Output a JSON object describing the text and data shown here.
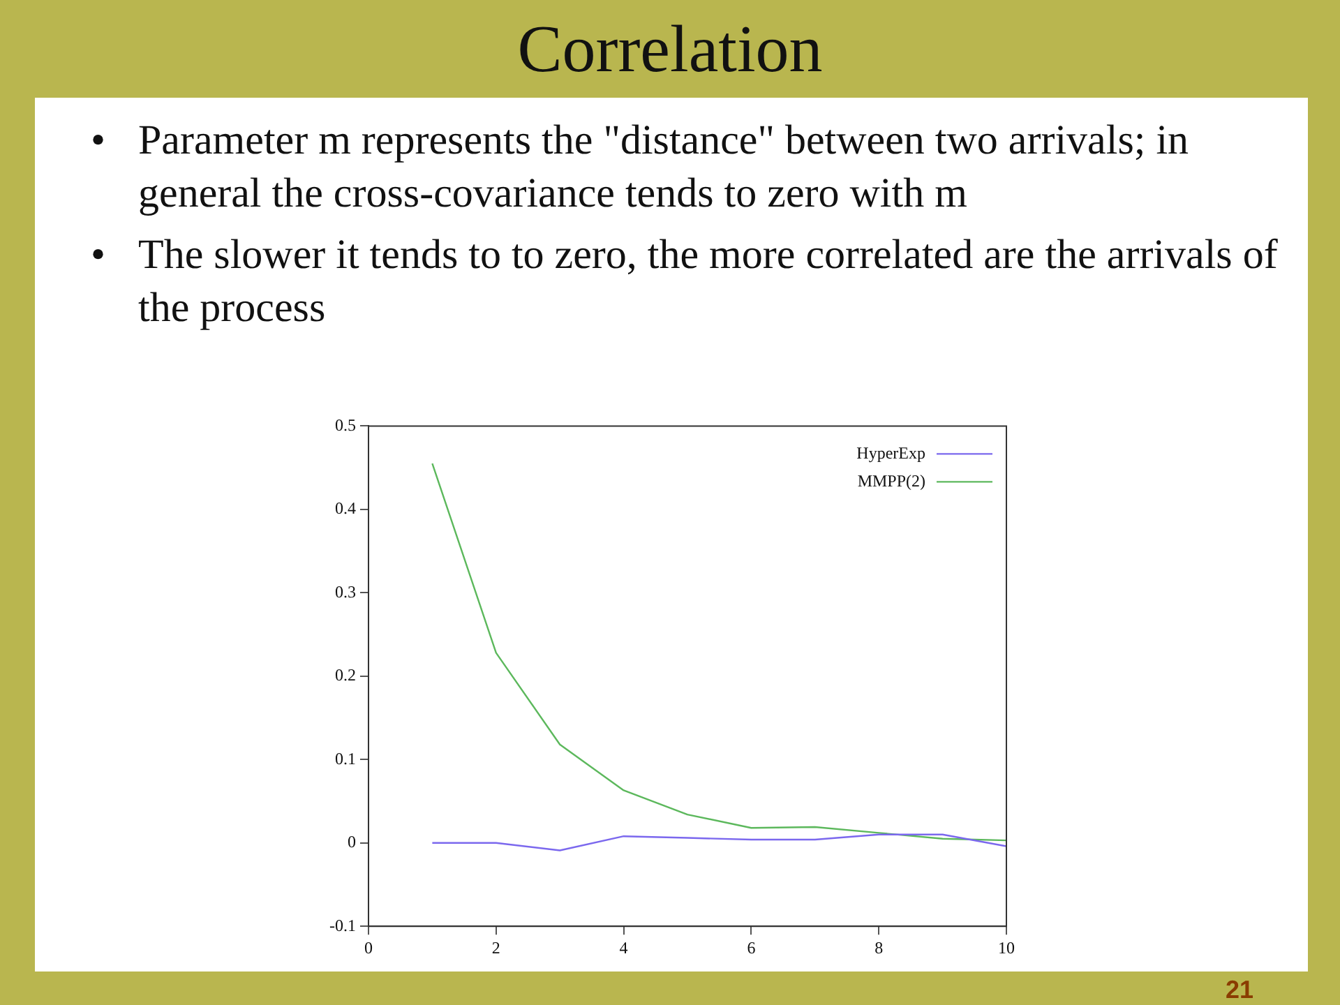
{
  "chart_data": {
    "type": "line",
    "title": "Correlation",
    "annotations": [
      "• Parameter m represents the \"distance\" between two arrivals; in general the cross-covariance tends to zero with m",
      "• The slower it tends to to zero, the more correlated are the arrivals of the process",
      "21"
    ],
    "x": [
      1,
      2,
      3,
      4,
      5,
      6,
      7,
      8,
      9,
      10
    ],
    "series": [
      {
        "name": "HyperExp",
        "color": "#7b68ee",
        "values": [
          0,
          0,
          -0.009,
          0.008,
          0.006,
          0.004,
          0.004,
          0.01,
          0.01,
          -0.004
        ]
      },
      {
        "name": "MMPP(2)",
        "color": "#5cb85c",
        "values": [
          0.455,
          0.228,
          0.118,
          0.063,
          0.034,
          0.018,
          0.019,
          0.012,
          0.005,
          0.003
        ]
      }
    ],
    "xlim": [
      0,
      10
    ],
    "xticks": [
      0,
      2,
      4,
      6,
      8,
      10
    ],
    "ylim": [
      -0.1,
      0.5
    ],
    "yticks": [
      -0.1,
      0,
      0.1,
      0.2,
      0.3,
      0.4,
      0.5
    ],
    "grid": false,
    "legend": "top right",
    "marker": "none",
    "line_style": "solid"
  }
}
